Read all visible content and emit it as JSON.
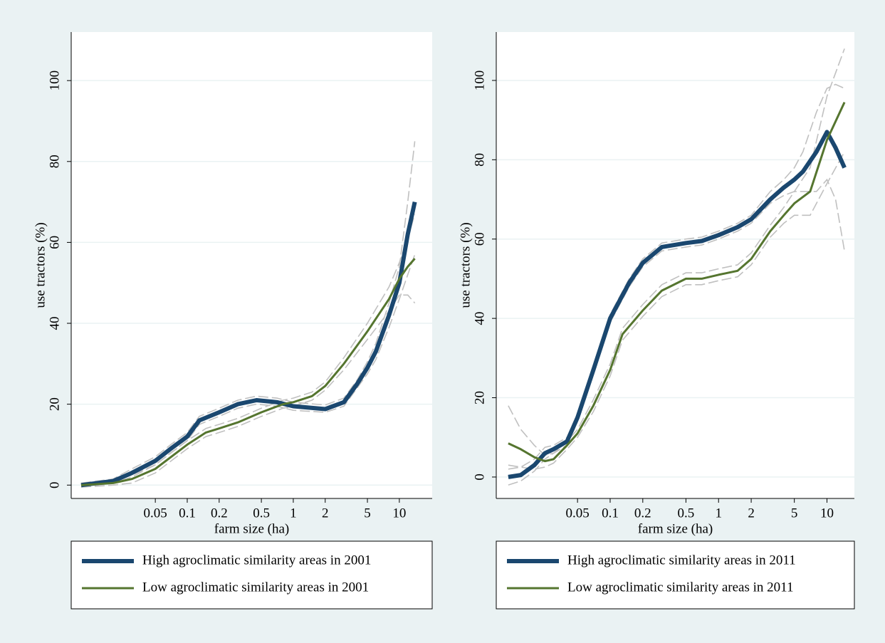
{
  "chart_data": [
    {
      "type": "line",
      "x_label": "farm size (ha)",
      "y_label": "use tractors (%)",
      "log_x": true,
      "grid": true,
      "legend": "bottom",
      "xlim": [
        0.00805,
        20.4
      ],
      "ylim": [
        -3.3,
        112
      ],
      "xticks": [
        0.05,
        0.1,
        0.2,
        0.5,
        1,
        2,
        5,
        10
      ],
      "yticks": [
        0,
        20,
        40,
        60,
        80,
        100
      ],
      "series": [
        {
          "name": "High agroclimatic similarity areas in 2001",
          "color": "#1a476f",
          "x": [
            0.01,
            0.02,
            0.03,
            0.05,
            0.07,
            0.1,
            0.13,
            0.2,
            0.3,
            0.45,
            0.7,
            1,
            2,
            3,
            4,
            5,
            6,
            8,
            10,
            12,
            14
          ],
          "values": [
            0,
            1,
            3,
            6,
            9,
            12,
            16,
            18,
            20,
            21,
            20.5,
            19.5,
            18.8,
            20.5,
            25,
            29,
            33,
            42,
            50,
            62,
            70
          ],
          "ci_lower": [
            -0.5,
            0.5,
            2,
            5,
            8,
            11,
            15,
            17,
            19,
            20,
            19.5,
            18.5,
            18,
            19.5,
            24,
            27.5,
            31,
            39,
            46,
            52,
            57
          ],
          "ci_upper": [
            0.5,
            1.5,
            4,
            7,
            10,
            13,
            17,
            19,
            21,
            22,
            21.5,
            20.5,
            19.8,
            21.5,
            26,
            30.5,
            35,
            45,
            54,
            70,
            85
          ]
        },
        {
          "name": "Low agroclimatic similarity areas in 2001",
          "color": "#55752f",
          "x": [
            0.01,
            0.02,
            0.03,
            0.05,
            0.1,
            0.15,
            0.2,
            0.3,
            0.5,
            0.8,
            1,
            1.5,
            2,
            3,
            5,
            8,
            10,
            12,
            14
          ],
          "values": [
            0,
            0.5,
            1.5,
            4,
            10,
            13,
            14,
            15.5,
            18,
            20,
            20.5,
            22,
            24.5,
            30,
            38,
            46,
            51,
            54,
            56
          ],
          "ci_lower": [
            -0.5,
            0,
            0.5,
            3,
            9,
            12,
            13,
            14.5,
            17,
            19,
            19.5,
            21,
            23.5,
            28.5,
            36,
            43,
            47,
            47,
            45
          ],
          "ci_upper": [
            0.5,
            1,
            2.5,
            5,
            11,
            14,
            15,
            16.5,
            19,
            21,
            21.5,
            23,
            25.5,
            31.5,
            40,
            49,
            55,
            61,
            67
          ]
        }
      ]
    },
    {
      "type": "line",
      "x_label": "farm size (ha)",
      "y_label": "use tractors (%)",
      "log_x": true,
      "grid": true,
      "legend": "bottom",
      "xlim": [
        0.0089,
        17.9
      ],
      "ylim": [
        -5.4,
        112.2
      ],
      "xticks": [
        0.05,
        0.1,
        0.2,
        0.5,
        1,
        2,
        5,
        10
      ],
      "yticks": [
        0,
        20,
        40,
        60,
        80,
        100
      ],
      "series": [
        {
          "name": "High agroclimatic similarity areas in 2011",
          "color": "#1a476f",
          "x": [
            0.0115,
            0.015,
            0.02,
            0.025,
            0.03,
            0.04,
            0.05,
            0.07,
            0.1,
            0.15,
            0.2,
            0.3,
            0.5,
            0.7,
            1,
            1.5,
            2,
            3,
            4,
            5,
            6,
            8,
            10,
            12,
            14.5
          ],
          "values": [
            0,
            0.5,
            3,
            6,
            7,
            9,
            15,
            27,
            40,
            49,
            54,
            58,
            59,
            59.5,
            61,
            63,
            65,
            70,
            73,
            75,
            77,
            82,
            87,
            83,
            78
          ],
          "ci_lower": [
            -2,
            -1,
            1.5,
            4.5,
            6,
            8,
            14,
            26,
            39,
            48,
            53,
            57,
            58,
            58.5,
            60,
            62,
            64,
            69,
            71,
            72,
            72,
            72,
            75,
            70,
            57
          ],
          "ci_upper": [
            3,
            2.5,
            4.5,
            7.5,
            8,
            10,
            16,
            28,
            41,
            50,
            55,
            59,
            60,
            60.5,
            62,
            64,
            66,
            72,
            75,
            78,
            82,
            92,
            98,
            99,
            98
          ]
        },
        {
          "name": "Low agroclimatic similarity areas in 2011",
          "color": "#55752f",
          "x": [
            0.0115,
            0.015,
            0.02,
            0.025,
            0.03,
            0.04,
            0.05,
            0.07,
            0.1,
            0.13,
            0.2,
            0.3,
            0.5,
            0.7,
            1,
            1.5,
            2,
            3,
            4,
            5,
            7,
            10,
            14.5
          ],
          "values": [
            8.5,
            7,
            5,
            4,
            4.5,
            8,
            11,
            18,
            27,
            36,
            42,
            47,
            50,
            50,
            51,
            52,
            55,
            62,
            66,
            69,
            72,
            85,
            94.5
          ],
          "ci_lower": [
            2,
            2.5,
            2,
            2.5,
            3.5,
            7,
            10,
            16.5,
            25.5,
            34.5,
            40.5,
            45.5,
            48.5,
            48.5,
            49.5,
            50.5,
            53.5,
            60.5,
            64,
            66,
            66,
            74,
            82
          ],
          "ci_upper": [
            18,
            12,
            8,
            5.5,
            6,
            9,
            12,
            19.5,
            28.5,
            37.5,
            43.5,
            48.5,
            51.5,
            51.5,
            52.5,
            53.5,
            56.5,
            63.5,
            68,
            72,
            78,
            96,
            108
          ]
        }
      ]
    }
  ]
}
